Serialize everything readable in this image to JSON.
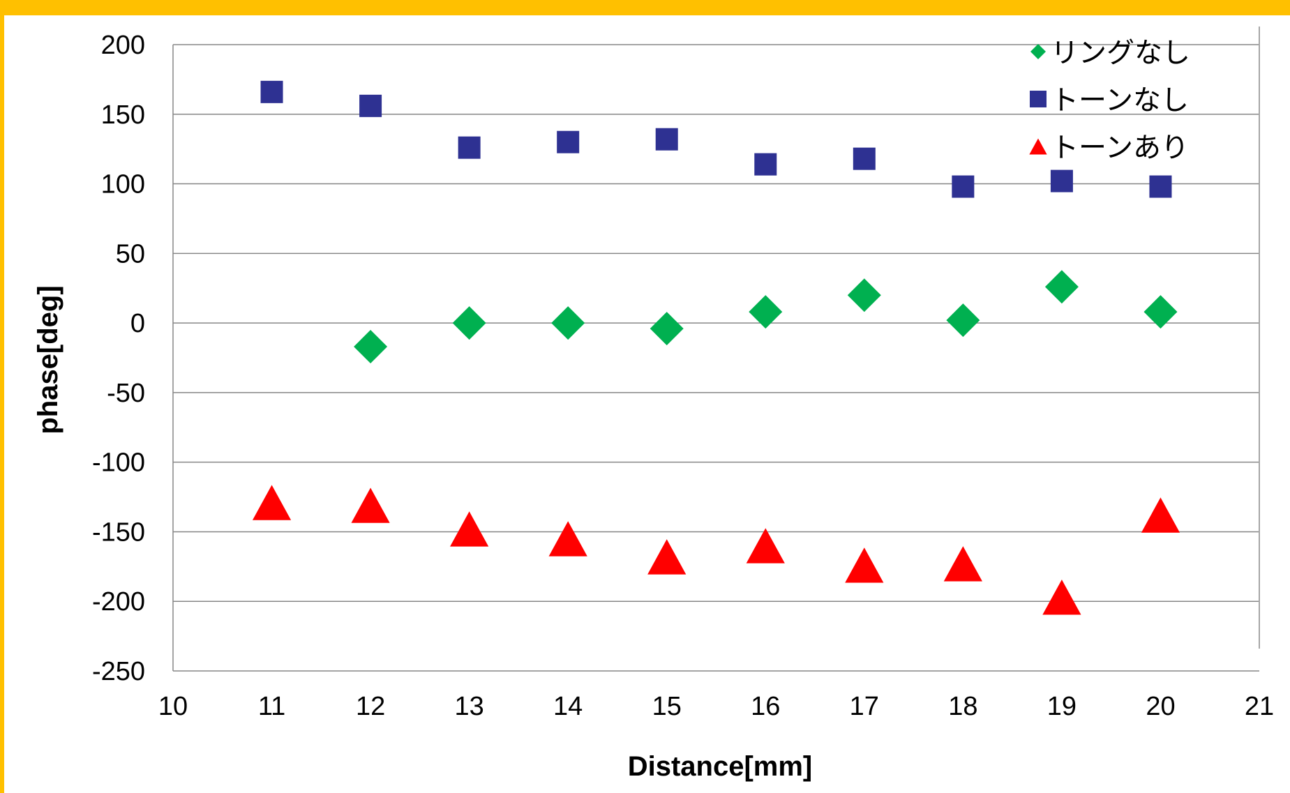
{
  "colors": {
    "frame": "#FFC000",
    "gridline": "#868686",
    "series_ring_none": "#00B050",
    "series_tone_none": "#2E3192",
    "series_tone_present": "#FF0000"
  },
  "chart_data": {
    "type": "scatter",
    "title": "",
    "xlabel": "Distance[mm]",
    "ylabel": "phase[deg]",
    "xlim": [
      10,
      21
    ],
    "ylim": [
      -250,
      200
    ],
    "x_ticks": [
      "10",
      "11",
      "12",
      "13",
      "14",
      "15",
      "16",
      "17",
      "18",
      "19",
      "20",
      "21"
    ],
    "y_ticks": [
      "200",
      "150",
      "100",
      "50",
      "0",
      "-50",
      "-100",
      "-150",
      "-200",
      "-250"
    ],
    "grid": "horizontal",
    "legend_position": "top-right",
    "series": [
      {
        "name": "リングなし",
        "marker": "diamond",
        "color": "#00B050",
        "points": [
          [
            12,
            -17
          ],
          [
            13,
            0
          ],
          [
            14,
            0
          ],
          [
            15,
            -4
          ],
          [
            16,
            8
          ],
          [
            17,
            20
          ],
          [
            18,
            2
          ],
          [
            19,
            26
          ],
          [
            20,
            8
          ]
        ]
      },
      {
        "name": "トーンなし",
        "marker": "square",
        "color": "#2E3192",
        "points": [
          [
            11,
            166
          ],
          [
            12,
            156
          ],
          [
            13,
            126
          ],
          [
            14,
            130
          ],
          [
            15,
            132
          ],
          [
            16,
            114
          ],
          [
            17,
            118
          ],
          [
            18,
            98
          ],
          [
            19,
            102
          ],
          [
            20,
            98
          ]
        ]
      },
      {
        "name": "トーンあり",
        "marker": "triangle",
        "color": "#FF0000",
        "points": [
          [
            11,
            -129
          ],
          [
            12,
            -131
          ],
          [
            13,
            -148
          ],
          [
            14,
            -155
          ],
          [
            15,
            -168
          ],
          [
            16,
            -160
          ],
          [
            17,
            -174
          ],
          [
            18,
            -173
          ],
          [
            19,
            -197
          ],
          [
            20,
            -138
          ]
        ]
      }
    ]
  }
}
